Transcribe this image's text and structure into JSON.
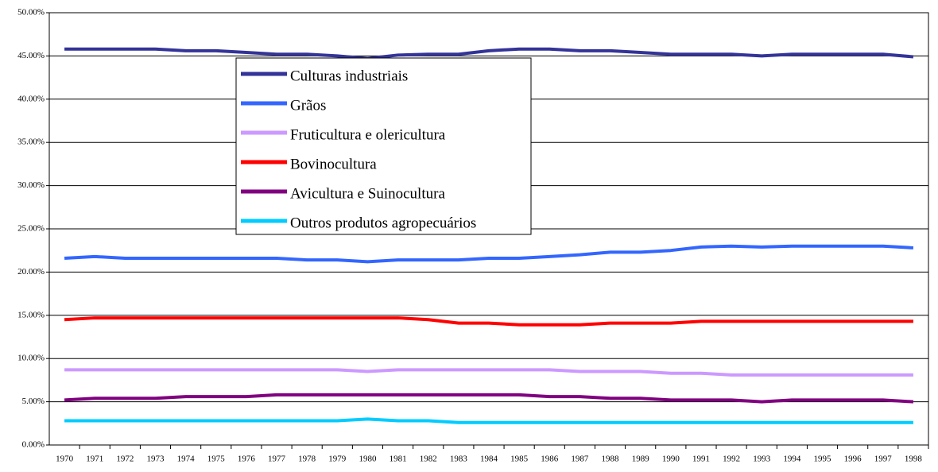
{
  "chart_data": {
    "type": "line",
    "categories": [
      "1970",
      "1971",
      "1972",
      "1973",
      "1974",
      "1975",
      "1976",
      "1977",
      "1978",
      "1979",
      "1980",
      "1981",
      "1982",
      "1983",
      "1984",
      "1985",
      "1986",
      "1987",
      "1988",
      "1989",
      "1990",
      "1991",
      "1992",
      "1993",
      "1994",
      "1995",
      "1996",
      "1997",
      "1998"
    ],
    "ylim": [
      0,
      50
    ],
    "yticks": [
      {
        "value": 0,
        "label": "0.00%"
      },
      {
        "value": 5,
        "label": "5.00%"
      },
      {
        "value": 10,
        "label": "10.00%"
      },
      {
        "value": 15,
        "label": "15.00%"
      },
      {
        "value": 20,
        "label": "20.00%"
      },
      {
        "value": 25,
        "label": "25.00%"
      },
      {
        "value": 30,
        "label": "30.00%"
      },
      {
        "value": 35,
        "label": "35.00%"
      },
      {
        "value": 40,
        "label": "40.00%"
      },
      {
        "value": 45,
        "label": "45.00%"
      },
      {
        "value": 50,
        "label": "50.00%"
      }
    ],
    "grid": true,
    "series": [
      {
        "name": "Culturas industriais",
        "color": "#333399",
        "values": [
          45.8,
          45.8,
          45.8,
          45.8,
          45.6,
          45.6,
          45.4,
          45.2,
          45.2,
          45.0,
          44.7,
          45.1,
          45.2,
          45.2,
          45.6,
          45.8,
          45.8,
          45.6,
          45.6,
          45.4,
          45.2,
          45.2,
          45.2,
          45.0,
          45.2,
          45.2,
          45.2,
          45.2,
          44.9
        ]
      },
      {
        "name": "Grãos",
        "color": "#3366ff",
        "values": [
          21.6,
          21.8,
          21.6,
          21.6,
          21.6,
          21.6,
          21.6,
          21.6,
          21.4,
          21.4,
          21.2,
          21.4,
          21.4,
          21.4,
          21.6,
          21.6,
          21.8,
          22.0,
          22.3,
          22.3,
          22.5,
          22.9,
          23.0,
          22.9,
          23.0,
          23.0,
          23.0,
          23.0,
          22.8
        ]
      },
      {
        "name": "Fruticultura e olericultura",
        "color": "#cc99ff",
        "values": [
          8.7,
          8.7,
          8.7,
          8.7,
          8.7,
          8.7,
          8.7,
          8.7,
          8.7,
          8.7,
          8.5,
          8.7,
          8.7,
          8.7,
          8.7,
          8.7,
          8.7,
          8.5,
          8.5,
          8.5,
          8.3,
          8.3,
          8.1,
          8.1,
          8.1,
          8.1,
          8.1,
          8.1,
          8.1
        ]
      },
      {
        "name": "Bovinocultura",
        "color": "#ff0000",
        "values": [
          14.5,
          14.7,
          14.7,
          14.7,
          14.7,
          14.7,
          14.7,
          14.7,
          14.7,
          14.7,
          14.7,
          14.7,
          14.5,
          14.1,
          14.1,
          13.9,
          13.9,
          13.9,
          14.1,
          14.1,
          14.1,
          14.3,
          14.3,
          14.3,
          14.3,
          14.3,
          14.3,
          14.3,
          14.3
        ]
      },
      {
        "name": "Avicultura e Suinocultura",
        "color": "#800080",
        "values": [
          5.2,
          5.4,
          5.4,
          5.4,
          5.6,
          5.6,
          5.6,
          5.8,
          5.8,
          5.8,
          5.8,
          5.8,
          5.8,
          5.8,
          5.8,
          5.8,
          5.6,
          5.6,
          5.4,
          5.4,
          5.2,
          5.2,
          5.2,
          5.0,
          5.2,
          5.2,
          5.2,
          5.2,
          5.0
        ]
      },
      {
        "name": "Outros produtos agropecuários",
        "color": "#00ccff",
        "values": [
          2.8,
          2.8,
          2.8,
          2.8,
          2.8,
          2.8,
          2.8,
          2.8,
          2.8,
          2.8,
          3.0,
          2.8,
          2.8,
          2.6,
          2.6,
          2.6,
          2.6,
          2.6,
          2.6,
          2.6,
          2.6,
          2.6,
          2.6,
          2.6,
          2.6,
          2.6,
          2.6,
          2.6,
          2.6
        ]
      }
    ]
  }
}
